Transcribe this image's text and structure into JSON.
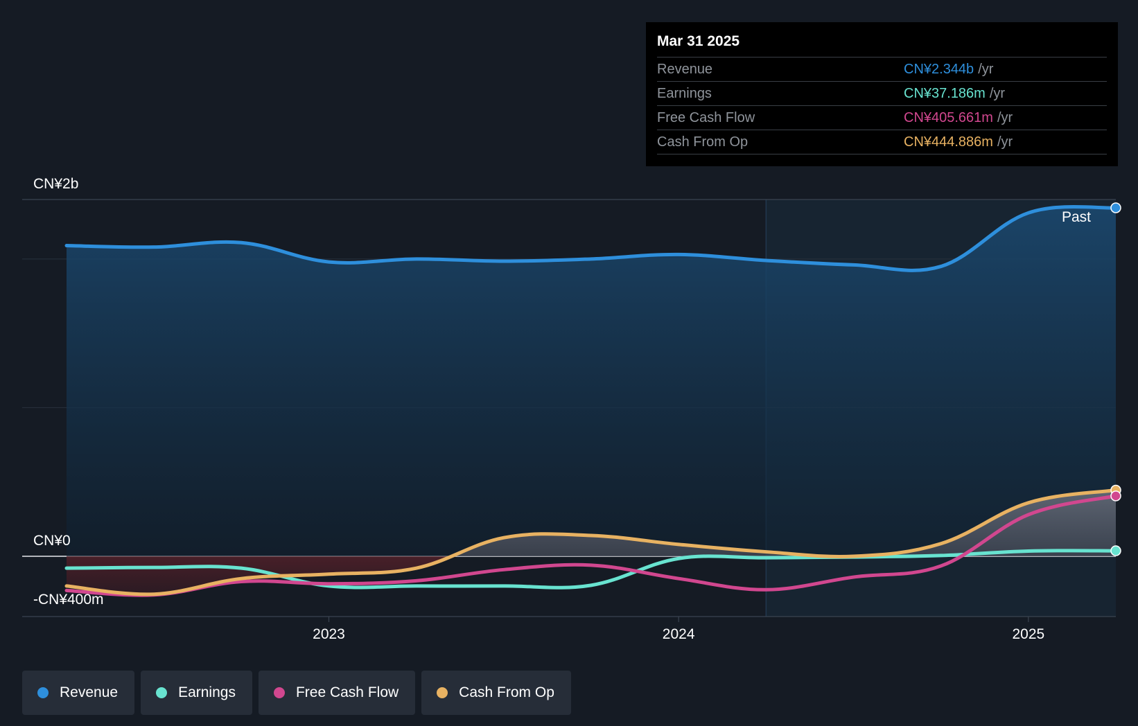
{
  "chart_data": {
    "type": "area",
    "y_tick_labels": [
      "CN¥2b",
      "CN¥0",
      "-CN¥400m"
    ],
    "x_tick_labels": [
      "2023",
      "2024",
      "2025"
    ],
    "x_ticks": [
      2023.0,
      2024.0,
      2025.0
    ],
    "ylim": [
      -400,
      2400
    ],
    "xlim": [
      2022.12,
      2025.25
    ],
    "past_label": "Past",
    "past_start": 2024.25,
    "series": [
      {
        "name": "Revenue",
        "color": "#2e8fdc",
        "points": [
          [
            2022.25,
            2090
          ],
          [
            2022.5,
            2080
          ],
          [
            2022.75,
            2110
          ],
          [
            2023.0,
            1980
          ],
          [
            2023.25,
            2000
          ],
          [
            2023.5,
            1985
          ],
          [
            2023.75,
            2000
          ],
          [
            2024.0,
            2030
          ],
          [
            2024.25,
            1990
          ],
          [
            2024.5,
            1960
          ],
          [
            2024.75,
            1950
          ],
          [
            2025.0,
            2310
          ],
          [
            2025.25,
            2344
          ]
        ]
      },
      {
        "name": "Earnings",
        "color": "#68e3d0",
        "points": [
          [
            2022.25,
            -80
          ],
          [
            2022.5,
            -75
          ],
          [
            2022.75,
            -80
          ],
          [
            2023.0,
            -200
          ],
          [
            2023.25,
            -200
          ],
          [
            2023.5,
            -200
          ],
          [
            2023.75,
            -195
          ],
          [
            2024.0,
            -15
          ],
          [
            2024.25,
            -10
          ],
          [
            2024.5,
            -5
          ],
          [
            2024.75,
            5
          ],
          [
            2025.0,
            35
          ],
          [
            2025.25,
            37
          ]
        ]
      },
      {
        "name": "Free Cash Flow",
        "color": "#d1478f",
        "points": [
          [
            2022.25,
            -230
          ],
          [
            2022.5,
            -260
          ],
          [
            2022.75,
            -170
          ],
          [
            2023.0,
            -185
          ],
          [
            2023.25,
            -165
          ],
          [
            2023.5,
            -90
          ],
          [
            2023.75,
            -60
          ],
          [
            2024.0,
            -150
          ],
          [
            2024.25,
            -225
          ],
          [
            2024.5,
            -140
          ],
          [
            2024.75,
            -65
          ],
          [
            2025.0,
            280
          ],
          [
            2025.25,
            406
          ]
        ]
      },
      {
        "name": "Cash From Op",
        "color": "#e8b262",
        "points": [
          [
            2022.25,
            -200
          ],
          [
            2022.5,
            -255
          ],
          [
            2022.75,
            -150
          ],
          [
            2023.0,
            -120
          ],
          [
            2023.25,
            -80
          ],
          [
            2023.5,
            125
          ],
          [
            2023.75,
            140
          ],
          [
            2024.0,
            80
          ],
          [
            2024.25,
            30
          ],
          [
            2024.5,
            0
          ],
          [
            2024.75,
            85
          ],
          [
            2025.0,
            360
          ],
          [
            2025.25,
            445
          ]
        ]
      }
    ]
  },
  "tooltip": {
    "date": "Mar 31 2025",
    "rows": [
      {
        "label": "Revenue",
        "value": "CN¥2.344b",
        "unit": "/yr",
        "color": "#2e8fdc"
      },
      {
        "label": "Earnings",
        "value": "CN¥37.186m",
        "unit": "/yr",
        "color": "#68e3d0"
      },
      {
        "label": "Free Cash Flow",
        "value": "CN¥405.661m",
        "unit": "/yr",
        "color": "#d1478f"
      },
      {
        "label": "Cash From Op",
        "value": "CN¥444.886m",
        "unit": "/yr",
        "color": "#e8b262"
      }
    ]
  },
  "legend": [
    {
      "label": "Revenue",
      "color": "#2e8fdc"
    },
    {
      "label": "Earnings",
      "color": "#68e3d0"
    },
    {
      "label": "Free Cash Flow",
      "color": "#d1478f"
    },
    {
      "label": "Cash From Op",
      "color": "#e8b262"
    }
  ]
}
